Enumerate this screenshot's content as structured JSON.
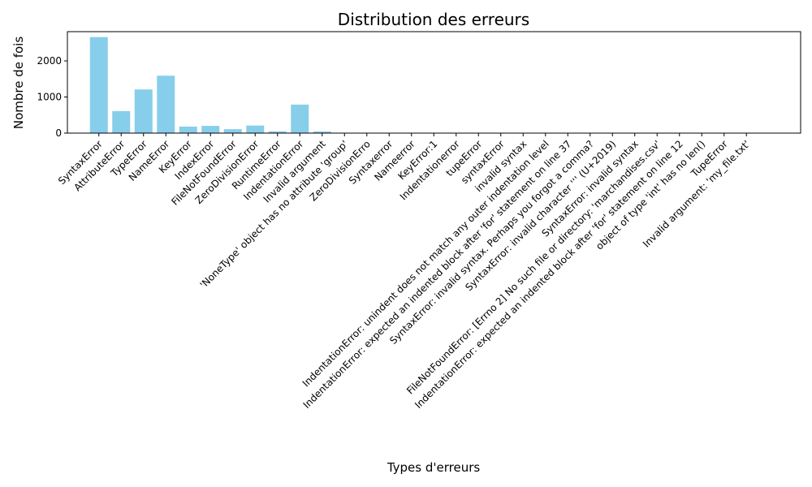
{
  "chart_data": {
    "type": "bar",
    "title": "Distribution des erreurs",
    "xlabel": "Types d'erreurs",
    "ylabel": "Nombre de fois",
    "bar_color": "#87ceeb",
    "ylim": [
      0,
      2810
    ],
    "yticks": [
      0,
      1000,
      2000
    ],
    "grid": false,
    "categories": [
      "SyntaxError",
      "AttributeError",
      "TypeError",
      "NameError",
      "KeyError",
      "IndexError",
      "FileNotFoundError",
      "ZeroDivisionError",
      "RuntimeError",
      "IndentationError",
      "Invalid argument",
      "'NoneType' object has no attribute 'group'",
      "ZeroDivisionErro",
      "Syntaxerror",
      "Nameerror",
      "KeyError:1",
      "Indentationerror",
      "tupeError",
      "syntaxError",
      "invalid syntax",
      "IndentationError: unindent does not match any outer indentation level",
      "IndentationError: expected an indented block after 'for' statement on line 37",
      "SyntaxError: invalid syntax. Perhaps you forgot a comma?",
      "SyntaxError: invalid character '‘' (U+2019)",
      "SyntaxError: invalid syntax",
      "FileNotFoundError: [Errno 2] No such file or directory: 'marchandises.csv'",
      "IndentationError: expected an indented block after 'for' statement on line 12",
      "object of type 'int' has no len()",
      "TupeError",
      "Invalid argument: 'my_file.txt'"
    ],
    "values": [
      2660,
      610,
      1210,
      1590,
      180,
      200,
      110,
      210,
      50,
      790,
      45,
      8,
      3,
      2,
      2,
      2,
      2,
      2,
      2,
      2,
      2,
      2,
      2,
      2,
      2,
      2,
      2,
      2,
      2,
      2
    ]
  }
}
